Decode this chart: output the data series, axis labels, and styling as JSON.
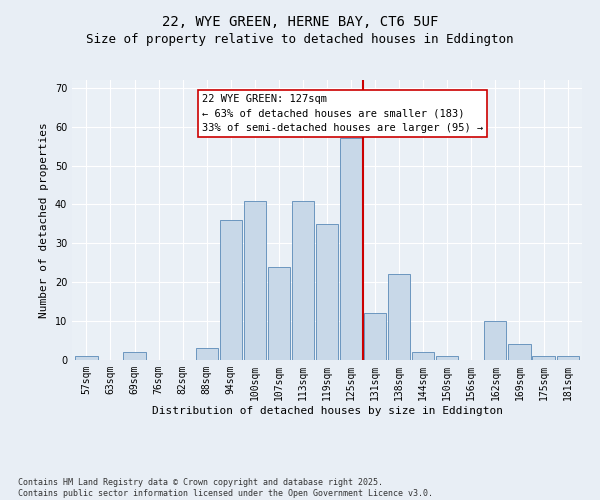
{
  "title": "22, WYE GREEN, HERNE BAY, CT6 5UF",
  "subtitle": "Size of property relative to detached houses in Eddington",
  "xlabel": "Distribution of detached houses by size in Eddington",
  "ylabel": "Number of detached properties",
  "categories": [
    "57sqm",
    "63sqm",
    "69sqm",
    "76sqm",
    "82sqm",
    "88sqm",
    "94sqm",
    "100sqm",
    "107sqm",
    "113sqm",
    "119sqm",
    "125sqm",
    "131sqm",
    "138sqm",
    "144sqm",
    "150sqm",
    "156sqm",
    "162sqm",
    "169sqm",
    "175sqm",
    "181sqm"
  ],
  "values": [
    1,
    0,
    2,
    0,
    0,
    3,
    36,
    41,
    24,
    41,
    35,
    57,
    12,
    22,
    2,
    1,
    0,
    10,
    4,
    1,
    1
  ],
  "bar_color": "#c8d8e8",
  "bar_edge_color": "#5a8ab8",
  "vline_x_index": 11.5,
  "vline_color": "#cc0000",
  "annotation_text": "22 WYE GREEN: 127sqm\n← 63% of detached houses are smaller (183)\n33% of semi-detached houses are larger (95) →",
  "annotation_box_color": "#ffffff",
  "annotation_box_edge_color": "#cc0000",
  "ylim": [
    0,
    72
  ],
  "yticks": [
    0,
    10,
    20,
    30,
    40,
    50,
    60,
    70
  ],
  "footnote": "Contains HM Land Registry data © Crown copyright and database right 2025.\nContains public sector information licensed under the Open Government Licence v3.0.",
  "bg_color": "#e8eef5",
  "plot_bg_color": "#eaf0f6",
  "grid_color": "#ffffff",
  "title_fontsize": 10,
  "subtitle_fontsize": 9,
  "axis_label_fontsize": 8,
  "tick_fontsize": 7,
  "annotation_fontsize": 7.5,
  "footnote_fontsize": 6
}
